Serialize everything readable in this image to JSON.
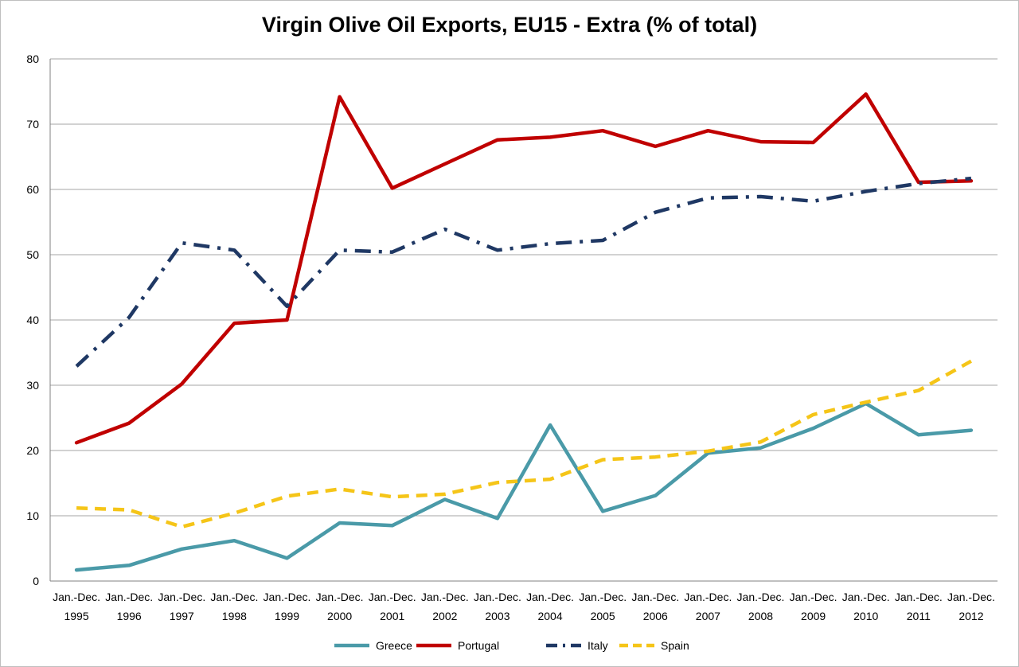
{
  "chart_data": {
    "type": "line",
    "title": "Virgin Olive Oil Exports, EU15 - Extra (% of total)",
    "xlabel": "",
    "ylabel": "",
    "ylim": [
      0,
      80
    ],
    "yticks": [
      0,
      10,
      20,
      30,
      40,
      50,
      60,
      70,
      80
    ],
    "grid": "horizontal",
    "legend_position": "bottom",
    "categories": [
      [
        "Jan.-Dec.",
        "1995"
      ],
      [
        "Jan.-Dec.",
        "1996"
      ],
      [
        "Jan.-Dec.",
        "1997"
      ],
      [
        "Jan.-Dec.",
        "1998"
      ],
      [
        "Jan.-Dec.",
        "1999"
      ],
      [
        "Jan.-Dec.",
        "2000"
      ],
      [
        "Jan.-Dec.",
        "2001"
      ],
      [
        "Jan.-Dec.",
        "2002"
      ],
      [
        "Jan.-Dec.",
        "2003"
      ],
      [
        "Jan.-Dec.",
        "2004"
      ],
      [
        "Jan.-Dec.",
        "2005"
      ],
      [
        "Jan.-Dec.",
        "2006"
      ],
      [
        "Jan.-Dec.",
        "2007"
      ],
      [
        "Jan.-Dec.",
        "2008"
      ],
      [
        "Jan.-Dec.",
        "2009"
      ],
      [
        "Jan.-Dec.",
        "2010"
      ],
      [
        "Jan.-Dec.",
        "2011"
      ],
      [
        "Jan.-Dec.",
        "2012"
      ]
    ],
    "series": [
      {
        "name": "Greece",
        "color": "#4a9aa8",
        "dash": "solid",
        "values": [
          1.7,
          2.4,
          4.9,
          6.2,
          3.5,
          8.9,
          8.5,
          12.5,
          9.6,
          23.9,
          10.7,
          13.1,
          19.6,
          20.4,
          23.4,
          27.2,
          22.4,
          23.1
        ]
      },
      {
        "name": "Portugal",
        "color": "#c00000",
        "dash": "solid",
        "values": [
          21.2,
          24.2,
          30.2,
          39.5,
          40.0,
          74.2,
          60.2,
          63.9,
          67.6,
          68.0,
          69.0,
          66.6,
          69.0,
          67.3,
          67.2,
          74.6,
          61.1,
          61.3
        ]
      },
      {
        "name": "Italy",
        "color": "#1f3864",
        "dash": "dashdot",
        "values": [
          32.9,
          40.4,
          51.8,
          50.7,
          42.1,
          50.7,
          50.4,
          53.9,
          50.7,
          51.7,
          52.2,
          56.5,
          58.7,
          58.9,
          58.2,
          59.7,
          60.9,
          61.7
        ]
      },
      {
        "name": "Spain",
        "color": "#f5c518",
        "dash": "dash",
        "values": [
          11.2,
          10.9,
          8.3,
          10.4,
          13.0,
          14.1,
          12.9,
          13.3,
          15.1,
          15.6,
          18.6,
          19.0,
          19.9,
          21.3,
          25.5,
          27.4,
          29.2,
          33.7
        ]
      }
    ]
  }
}
